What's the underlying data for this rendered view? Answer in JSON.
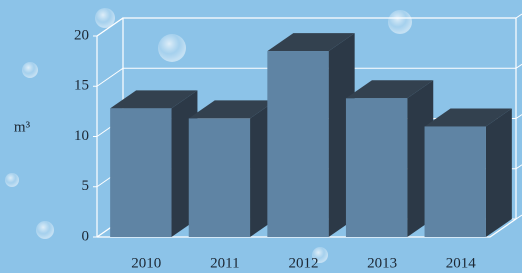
{
  "chart_data": {
    "type": "bar3d",
    "y_label": "m³",
    "categories": [
      "2010",
      "2011",
      "2012",
      "2013",
      "2014"
    ],
    "values": [
      12.8,
      11.8,
      18.5,
      13.8,
      11
    ],
    "color": "#5f84a4",
    "ylim": [
      0,
      20
    ],
    "yticks": [
      0,
      5,
      10,
      15,
      20
    ],
    "grid": true
  }
}
